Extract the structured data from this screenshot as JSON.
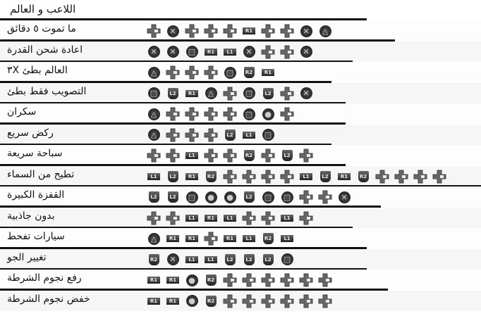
{
  "title": "اللاعب و العالم",
  "button_legend": {
    "D": "dpad-icon",
    "X": "cross-icon",
    "O": "circle-icon",
    "S": "square-icon",
    "T": "triangle-icon",
    "L1": "L1",
    "L2": "L2",
    "R1": "R1",
    "R2": "R2"
  },
  "rows": [
    {
      "label": "ما تموت ٥ دقائق",
      "buttons": [
        "D",
        "X",
        "D",
        "D",
        "D",
        "R1",
        "D",
        "D",
        "X",
        "T"
      ]
    },
    {
      "label": "اعادة شحن القدرة",
      "buttons": [
        "X",
        "X",
        "S",
        "R1",
        "L1",
        "X",
        "D",
        "D",
        "X"
      ]
    },
    {
      "label": "العالم بطئ ٣X",
      "buttons": [
        "T",
        "D",
        "D",
        "D",
        "S",
        "R2",
        "R1"
      ]
    },
    {
      "label": "التصويب فقط بطئ",
      "buttons": [
        "S",
        "L2",
        "R1",
        "T",
        "D",
        "S",
        "L2",
        "D",
        "X"
      ]
    },
    {
      "label": "سكران",
      "buttons": [
        "T",
        "D",
        "D",
        "D",
        "D",
        "S",
        "O",
        "D"
      ]
    },
    {
      "label": "ركض سريع",
      "buttons": [
        "T",
        "D",
        "D",
        "D",
        "L2",
        "L1",
        "S"
      ]
    },
    {
      "label": "سباحة سريعة",
      "buttons": [
        "D",
        "D",
        "L1",
        "D",
        "D",
        "R2",
        "D",
        "L2",
        "D"
      ]
    },
    {
      "label": "تطيح من السماء",
      "buttons": [
        "L1",
        "L2",
        "R1",
        "R2",
        "D",
        "D",
        "D",
        "D",
        "L1",
        "L2",
        "R1",
        "R2",
        "D",
        "D",
        "D",
        "D"
      ]
    },
    {
      "label": "القفزة الكبيرة",
      "buttons": [
        "L2",
        "L2",
        "S",
        "O",
        "O",
        "L2",
        "S",
        "S",
        "D",
        "D",
        "X"
      ]
    },
    {
      "label": "بدون جاذبية",
      "buttons": [
        "D",
        "D",
        "L1",
        "R1",
        "L1",
        "D",
        "D",
        "L1",
        "D"
      ]
    },
    {
      "label": "سيارات تفحط",
      "buttons": [
        "T",
        "R1",
        "R1",
        "D",
        "R1",
        "L1",
        "R2",
        "L1"
      ]
    },
    {
      "label": "تغيير الجو",
      "buttons": [
        "R2",
        "X",
        "L1",
        "L1",
        "L2",
        "L2",
        "L2",
        "S"
      ]
    },
    {
      "label": "رفع نجوم الشرطة",
      "buttons": [
        "R1",
        "R1",
        "O",
        "R2",
        "D",
        "D",
        "D",
        "D",
        "D",
        "D"
      ]
    },
    {
      "label": "خفض نجوم الشرطة",
      "buttons": [
        "R1",
        "R1",
        "O",
        "R2",
        "D",
        "D",
        "D",
        "D",
        "D",
        "D"
      ]
    }
  ]
}
